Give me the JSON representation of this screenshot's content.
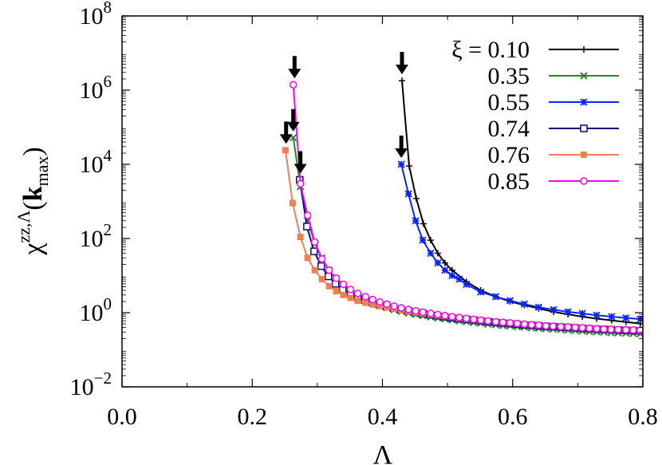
{
  "chart_data": {
    "type": "line",
    "title": "",
    "xlabel": "Λ",
    "ylabel": {
      "base": "χ",
      "superscript": "zz,Λ",
      "paren_open": "(",
      "bold": "k",
      "subscript": "max",
      "paren_close": ")"
    },
    "xlim": [
      0.0,
      0.8
    ],
    "ylim": [
      0.01,
      100000000
    ],
    "yscale": "log",
    "grid": false,
    "legend_position": "top-right",
    "legend_prefix": "ξ = ",
    "x_ticks": [
      {
        "value": 0.0,
        "label": "0.0"
      },
      {
        "value": 0.2,
        "label": "0.2"
      },
      {
        "value": 0.4,
        "label": "0.4"
      },
      {
        "value": 0.6,
        "label": "0.6"
      },
      {
        "value": 0.8,
        "label": "0.8"
      }
    ],
    "y_ticks": [
      {
        "value": 0.01,
        "base": "10",
        "exp": "−2"
      },
      {
        "value": 1,
        "base": "10",
        "exp": "0"
      },
      {
        "value": 100,
        "base": "10",
        "exp": "2"
      },
      {
        "value": 10000,
        "base": "10",
        "exp": "4"
      },
      {
        "value": 1000000,
        "base": "10",
        "exp": "6"
      },
      {
        "value": 100000000,
        "base": "10",
        "exp": "8"
      }
    ],
    "series": [
      {
        "name": "0.10",
        "color": "#000000",
        "marker": "plus",
        "x": [
          0.43,
          0.441,
          0.452,
          0.463,
          0.474,
          0.485,
          0.496,
          0.507,
          0.529,
          0.551,
          0.574,
          0.596,
          0.618,
          0.64,
          0.663,
          0.685,
          0.707,
          0.729,
          0.752,
          0.774,
          0.796
        ],
        "y": [
          1800000,
          9000,
          1200,
          250,
          90,
          40,
          22,
          14,
          6.8,
          4.0,
          2.7,
          2.0,
          1.6,
          1.3,
          1.05,
          0.9,
          0.78,
          0.69,
          0.62,
          0.56,
          0.51
        ]
      },
      {
        "name": "0.35",
        "color": "#228b22",
        "marker": "x",
        "x": [
          0.263,
          0.274,
          0.285,
          0.296,
          0.307,
          0.318,
          0.329,
          0.34,
          0.351,
          0.362,
          0.374,
          0.385,
          0.396,
          0.407,
          0.418,
          0.429,
          0.44,
          0.451,
          0.462,
          0.474,
          0.485,
          0.496,
          0.507,
          0.518,
          0.529,
          0.54,
          0.551,
          0.562,
          0.574,
          0.585,
          0.596,
          0.607,
          0.618,
          0.629,
          0.64,
          0.651,
          0.662,
          0.674,
          0.685,
          0.696,
          0.707,
          0.718,
          0.729,
          0.74,
          0.751,
          0.762,
          0.774,
          0.785,
          0.796
        ],
        "y": [
          52000,
          2500,
          300,
          75,
          30,
          14,
          8.0,
          5.0,
          3.6,
          2.8,
          2.2,
          1.8,
          1.55,
          1.35,
          1.2,
          1.08,
          0.98,
          0.9,
          0.83,
          0.77,
          0.72,
          0.68,
          0.64,
          0.6,
          0.57,
          0.54,
          0.52,
          0.49,
          0.47,
          0.45,
          0.44,
          0.42,
          0.41,
          0.39,
          0.38,
          0.37,
          0.36,
          0.35,
          0.34,
          0.33,
          0.32,
          0.31,
          0.305,
          0.3,
          0.29,
          0.285,
          0.28,
          0.275,
          0.27
        ]
      },
      {
        "name": "0.55",
        "color": "#0b24fb",
        "marker": "star",
        "x": [
          0.429,
          0.44,
          0.451,
          0.462,
          0.474,
          0.485,
          0.496,
          0.507,
          0.518,
          0.529,
          0.551,
          0.574,
          0.596,
          0.618,
          0.64,
          0.663,
          0.685,
          0.707,
          0.729,
          0.752,
          0.774,
          0.796
        ],
        "y": [
          10000,
          1600,
          300,
          90,
          40,
          22,
          14,
          10,
          8.0,
          5.8,
          3.6,
          2.7,
          2.1,
          1.7,
          1.4,
          1.2,
          1.05,
          0.95,
          0.85,
          0.78,
          0.72,
          0.67
        ]
      },
      {
        "name": "0.74",
        "color": "#0a0a7a",
        "marker": "square",
        "x": [
          0.273,
          0.284,
          0.295,
          0.306,
          0.317,
          0.328,
          0.339,
          0.351,
          0.362,
          0.373,
          0.384,
          0.395,
          0.406,
          0.417,
          0.428,
          0.44,
          0.451,
          0.462,
          0.473,
          0.484,
          0.495,
          0.506,
          0.517,
          0.529,
          0.54,
          0.551,
          0.562,
          0.573,
          0.584,
          0.595,
          0.606,
          0.617,
          0.629,
          0.64,
          0.651,
          0.662,
          0.673,
          0.684,
          0.695,
          0.706,
          0.717,
          0.729,
          0.74,
          0.751,
          0.762,
          0.773,
          0.784,
          0.795
        ],
        "y": [
          3800,
          210,
          45,
          18,
          9.5,
          6.0,
          4.2,
          3.2,
          2.6,
          2.2,
          1.9,
          1.65,
          1.47,
          1.33,
          1.21,
          1.11,
          1.02,
          0.95,
          0.88,
          0.83,
          0.78,
          0.73,
          0.69,
          0.66,
          0.63,
          0.6,
          0.57,
          0.55,
          0.53,
          0.51,
          0.49,
          0.47,
          0.46,
          0.44,
          0.43,
          0.42,
          0.41,
          0.4,
          0.39,
          0.38,
          0.37,
          0.36,
          0.355,
          0.35,
          0.34,
          0.335,
          0.33,
          0.325
        ]
      },
      {
        "name": "0.76",
        "color": "#f08050",
        "marker": "filled-square",
        "x": [
          0.251,
          0.262,
          0.274,
          0.285,
          0.296,
          0.307,
          0.318,
          0.329,
          0.34,
          0.351,
          0.362,
          0.374,
          0.385,
          0.396,
          0.407,
          0.418,
          0.429,
          0.44,
          0.451,
          0.462,
          0.474,
          0.485,
          0.496,
          0.507,
          0.518,
          0.529,
          0.54,
          0.551,
          0.562,
          0.574,
          0.585,
          0.596,
          0.607,
          0.618,
          0.629,
          0.64,
          0.651,
          0.662,
          0.674,
          0.685,
          0.696,
          0.707,
          0.718,
          0.729,
          0.74,
          0.751,
          0.762,
          0.774,
          0.785,
          0.796
        ],
        "y": [
          24000,
          900,
          110,
          30,
          14,
          8.0,
          5.2,
          3.8,
          3.0,
          2.5,
          2.1,
          1.85,
          1.65,
          1.5,
          1.37,
          1.26,
          1.16,
          1.08,
          1.01,
          0.95,
          0.89,
          0.84,
          0.8,
          0.76,
          0.72,
          0.68,
          0.65,
          0.62,
          0.6,
          0.57,
          0.55,
          0.53,
          0.51,
          0.49,
          0.48,
          0.46,
          0.45,
          0.44,
          0.43,
          0.42,
          0.41,
          0.4,
          0.39,
          0.38,
          0.37,
          0.36,
          0.355,
          0.35,
          0.345,
          0.34
        ]
      },
      {
        "name": "0.85",
        "color": "#ff00ff",
        "marker": "circle",
        "x": [
          0.263,
          0.274,
          0.285,
          0.296,
          0.307,
          0.318,
          0.329,
          0.34,
          0.351,
          0.362,
          0.374,
          0.385,
          0.396,
          0.407,
          0.418,
          0.429,
          0.44,
          0.451,
          0.462,
          0.474,
          0.485,
          0.496,
          0.507,
          0.518,
          0.529,
          0.54,
          0.551,
          0.562,
          0.574,
          0.585,
          0.596,
          0.607,
          0.618,
          0.629,
          0.64,
          0.651,
          0.662,
          0.674,
          0.685,
          0.696,
          0.707,
          0.718,
          0.729,
          0.74,
          0.751,
          0.762,
          0.774,
          0.785,
          0.796
        ],
        "y": [
          1400000,
          3000,
          420,
          80,
          28,
          14,
          8.5,
          5.8,
          4.2,
          3.3,
          2.7,
          2.25,
          1.95,
          1.7,
          1.5,
          1.35,
          1.22,
          1.12,
          1.03,
          0.96,
          0.89,
          0.83,
          0.78,
          0.74,
          0.7,
          0.66,
          0.63,
          0.6,
          0.57,
          0.55,
          0.53,
          0.51,
          0.49,
          0.47,
          0.46,
          0.44,
          0.43,
          0.42,
          0.41,
          0.4,
          0.39,
          0.38,
          0.37,
          0.36,
          0.355,
          0.35,
          0.345,
          0.34,
          0.335
        ]
      }
    ],
    "annotations": [
      {
        "type": "down-arrow",
        "x": 0.265,
        "y": 1400000
      },
      {
        "type": "down-arrow",
        "x": 0.263,
        "y": 52000
      },
      {
        "type": "down-arrow",
        "x": 0.252,
        "y": 24000
      },
      {
        "type": "down-arrow",
        "x": 0.274,
        "y": 3800
      },
      {
        "type": "down-arrow",
        "x": 0.43,
        "y": 1800000
      },
      {
        "type": "down-arrow",
        "x": 0.429,
        "y": 10000
      }
    ]
  }
}
